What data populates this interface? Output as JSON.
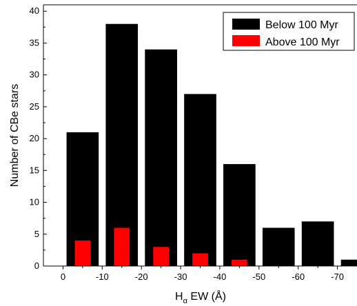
{
  "chart_data": {
    "type": "bar",
    "xlabel_main": "H",
    "xlabel_sub": "α",
    "xlabel_rest": " EW (Å)",
    "ylabel": "Number of CBe stars",
    "xlim": [
      5,
      -75
    ],
    "ylim": [
      0,
      41
    ],
    "x_ticks": [
      0,
      -10,
      -20,
      -30,
      -40,
      -50,
      -60,
      -70
    ],
    "y_ticks": [
      0,
      5,
      10,
      15,
      20,
      25,
      30,
      35,
      40
    ],
    "bin_width": 10,
    "legend_position": "top-right",
    "series": [
      {
        "name": "Below 100 Myr",
        "color": "#000000",
        "bins": [
          {
            "x": -5,
            "value": 21
          },
          {
            "x": -15,
            "value": 38
          },
          {
            "x": -25,
            "value": 34
          },
          {
            "x": -35,
            "value": 27
          },
          {
            "x": -45,
            "value": 16
          },
          {
            "x": -55,
            "value": 6
          },
          {
            "x": -65,
            "value": 7
          },
          {
            "x": -75,
            "value": 1
          }
        ]
      },
      {
        "name": "Above 100 Myr",
        "color": "#ff0000",
        "bins": [
          {
            "x": -5,
            "value": 4
          },
          {
            "x": -15,
            "value": 6
          },
          {
            "x": -25,
            "value": 3
          },
          {
            "x": -35,
            "value": 2
          },
          {
            "x": -45,
            "value": 1
          }
        ]
      }
    ]
  }
}
